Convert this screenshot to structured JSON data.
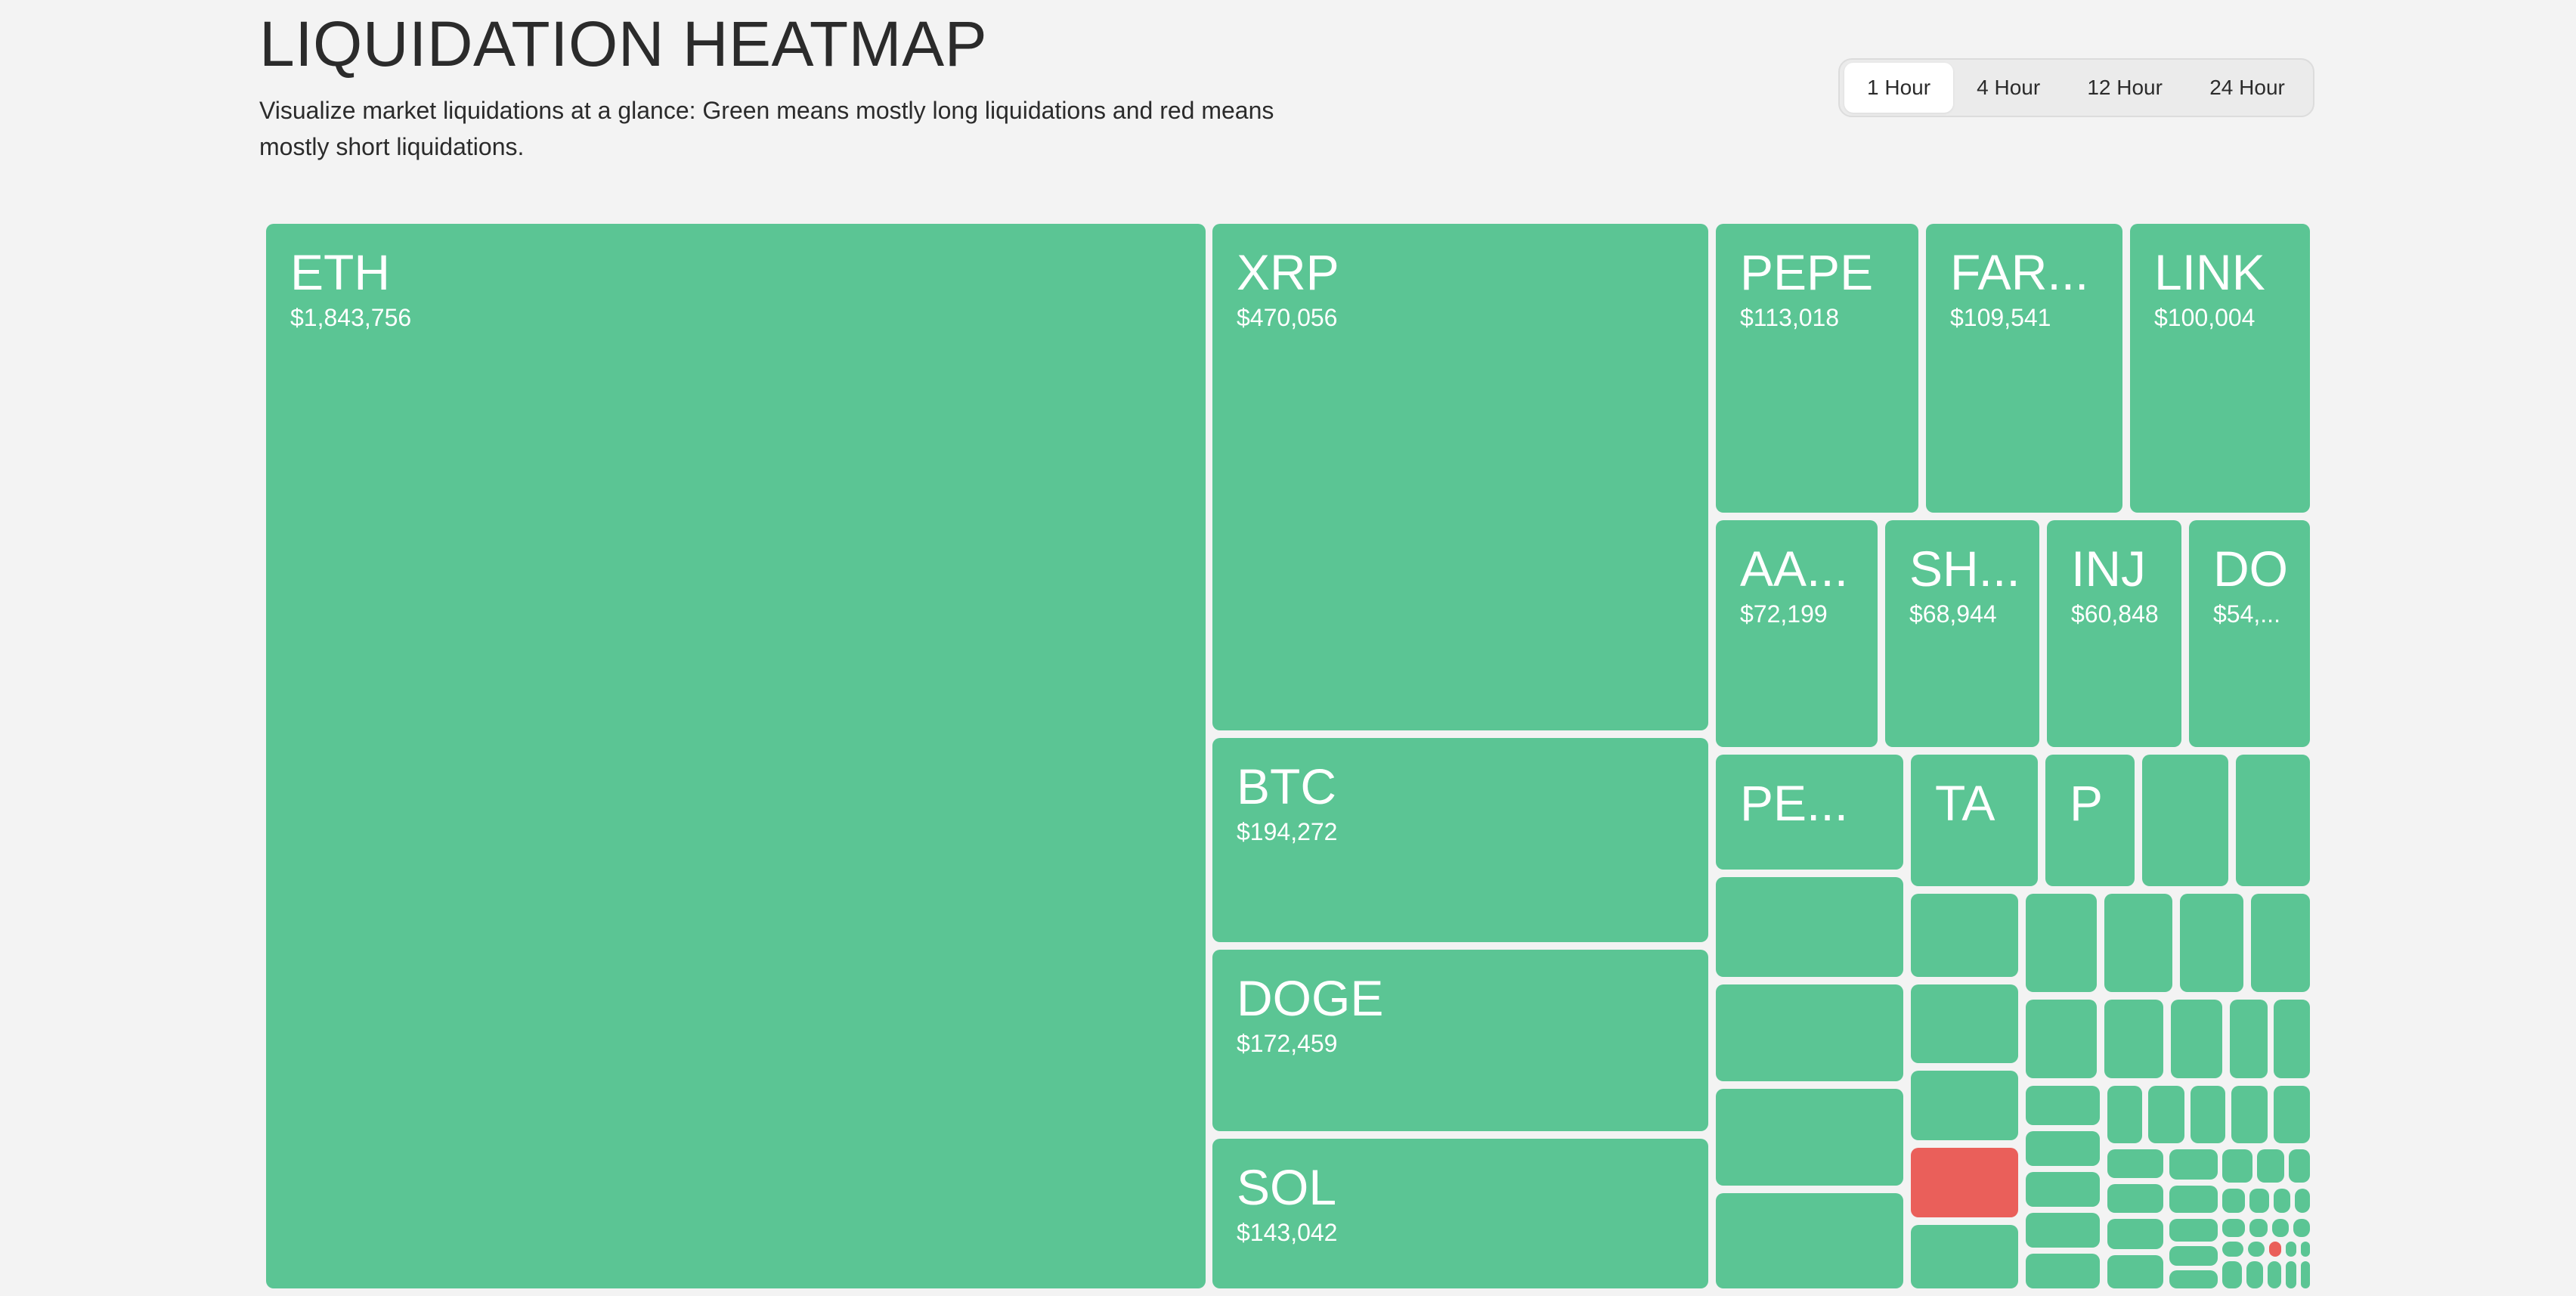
{
  "header": {
    "title": "LIQUIDATION HEATMAP",
    "subtitle": "Visualize market liquidations at a glance: Green means mostly long liquidations and red means mostly short liquidations."
  },
  "timeframes": {
    "options": [
      "1 Hour",
      "4 Hour",
      "12 Hour",
      "24 Hour"
    ],
    "selected": "1 Hour"
  },
  "colors": {
    "long": "#5bc594",
    "short": "#ea5f5a"
  },
  "heatmap": {
    "labeled_tiles": [
      {
        "symbol": "ETH",
        "value": "$1,843,756",
        "side": "long"
      },
      {
        "symbol": "XRP",
        "value": "$470,056",
        "side": "long"
      },
      {
        "symbol": "BTC",
        "value": "$194,272",
        "side": "long"
      },
      {
        "symbol": "DOGE",
        "value": "$172,459",
        "side": "long"
      },
      {
        "symbol": "SOL",
        "value": "$143,042",
        "side": "long"
      },
      {
        "symbol": "PEPE",
        "value": "$113,018",
        "side": "long"
      },
      {
        "symbol": "FAR...",
        "value": "$109,541",
        "side": "long"
      },
      {
        "symbol": "LINK",
        "value": "$100,004",
        "side": "long"
      },
      {
        "symbol": "AA...",
        "value": "$72,199",
        "side": "long"
      },
      {
        "symbol": "SH...",
        "value": "$68,944",
        "side": "long"
      },
      {
        "symbol": "INJ",
        "value": "$60,848",
        "side": "long"
      },
      {
        "symbol": "DO",
        "value": "$54,...",
        "side": "long"
      },
      {
        "symbol": "PE...",
        "value": "",
        "side": "long"
      },
      {
        "symbol": "TA",
        "value": "",
        "side": "long"
      },
      {
        "symbol": "P",
        "value": "",
        "side": "long"
      }
    ]
  }
}
